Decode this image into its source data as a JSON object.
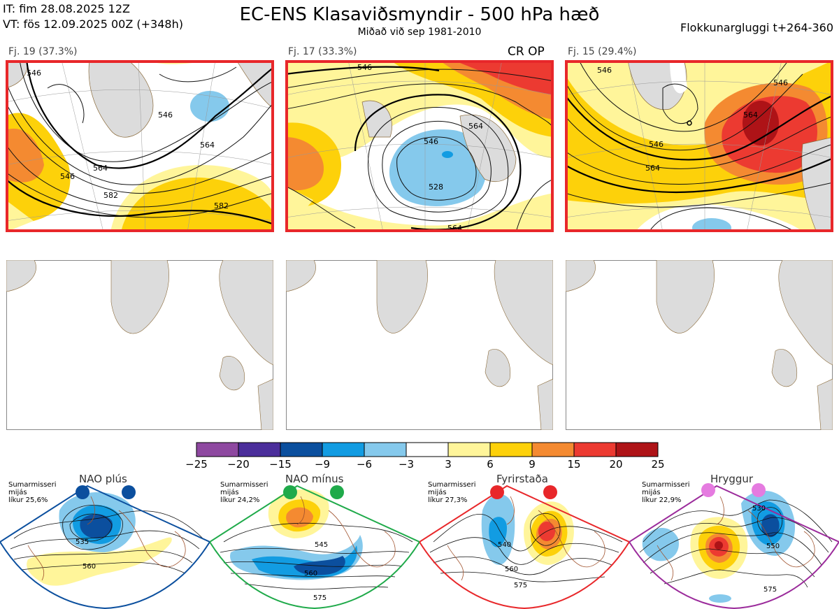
{
  "header": {
    "it_line": "IT: fim 28.08.2025 12Z",
    "vt_line": "VT: fös 12.09.2025 00Z  (+348h)",
    "title": "EC-ENS Klasaviðsmyndir - 500 hPa hæð",
    "subtitle": "Miðað við sep 1981-2010",
    "window": "Flokkunargluggi t+264-360"
  },
  "clusters": [
    {
      "label": "Fj. 19 (37.3%)",
      "contours": [
        "546",
        "546",
        "546",
        "564",
        "564",
        "582",
        "582"
      ]
    },
    {
      "label": "Fj. 17 (33.3%)",
      "badge": "CR OP",
      "contours": [
        "546",
        "546",
        "564",
        "564",
        "528"
      ]
    },
    {
      "label": "Fj. 15 (29.4%)",
      "contours": [
        "546",
        "546",
        "546",
        "564",
        "564"
      ]
    }
  ],
  "colorbar": {
    "ticks": [
      "−25",
      "−20",
      "−15",
      "−9",
      "−6",
      "−3",
      "3",
      "6",
      "9",
      "15",
      "20",
      "25"
    ],
    "colors": [
      "#8e48a0",
      "#4b2e9b",
      "#0b4f9e",
      "#129ce2",
      "#85c9ec",
      "#ffffff",
      "#fff59a",
      "#fdd10a",
      "#f48a31",
      "#ec3a31",
      "#ae1317"
    ]
  },
  "regimes": [
    {
      "name": "NAO plús",
      "season": "Sumarmisseri",
      "mode": "mijás",
      "prob": "líkur 25,6%",
      "color": "#0b4f9e",
      "contours": [
        "535",
        "560"
      ]
    },
    {
      "name": "NAO mínus",
      "season": "Sumarmisseri",
      "mode": "mijás",
      "prob": "líkur 24,2%",
      "color": "#1faa4a",
      "contours": [
        "545",
        "560",
        "575"
      ]
    },
    {
      "name": "Fyrirstaða",
      "season": "Sumarmisseri",
      "mode": "mijás",
      "prob": "líkur 27,3%",
      "color": "#e8272a",
      "contours": [
        "540",
        "560",
        "575"
      ]
    },
    {
      "name": "Hryggur",
      "season": "Sumarmisseri",
      "mode": "mijás",
      "prob": "líkur 22,9%",
      "color": "#9b2b9b",
      "contours": [
        "530",
        "550",
        "575"
      ]
    }
  ]
}
